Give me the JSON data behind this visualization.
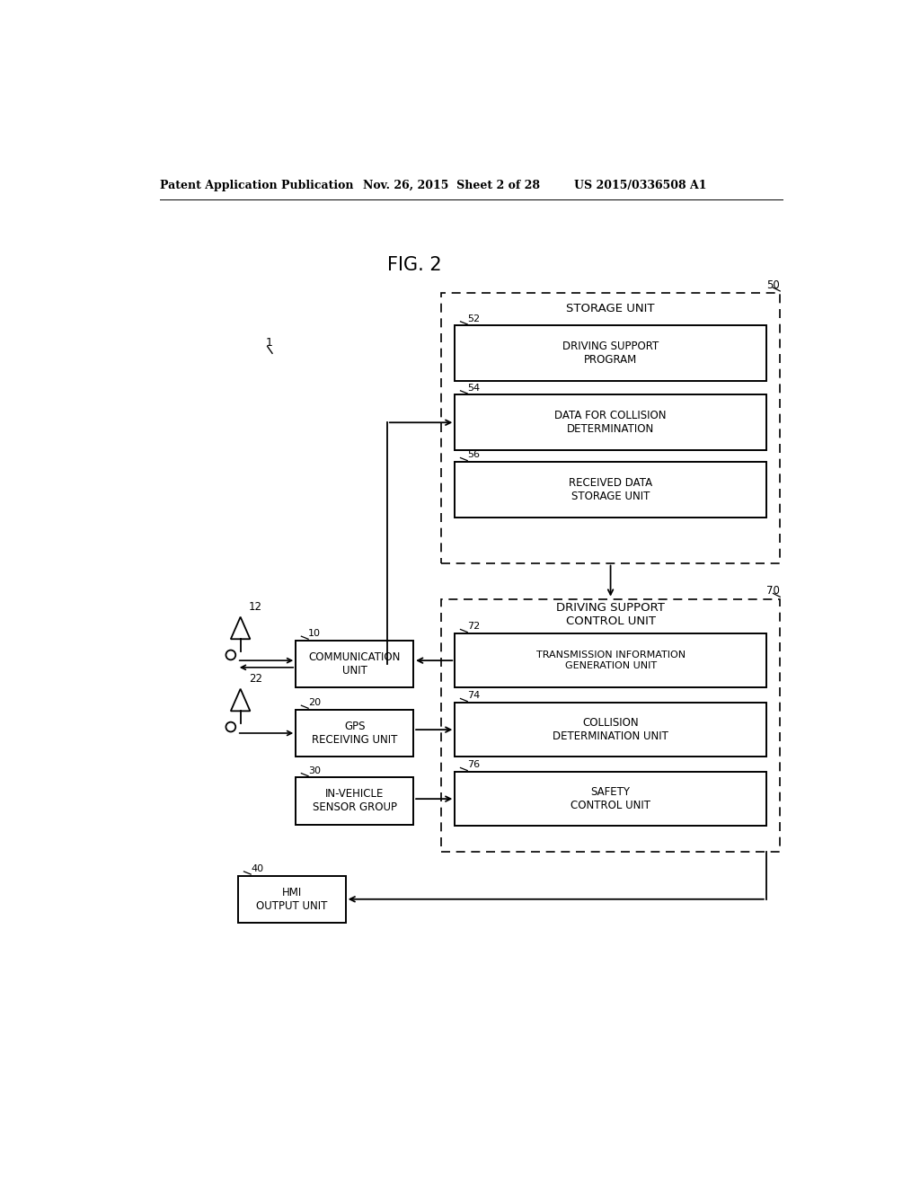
{
  "fig_title": "FIG. 2",
  "header_left": "Patent Application Publication",
  "header_mid": "Nov. 26, 2015  Sheet 2 of 28",
  "header_right": "US 2015/0336508 A1",
  "bg_color": "#ffffff",
  "label_1": "1",
  "label_50": "50",
  "label_52": "52",
  "label_54": "54",
  "label_56": "56",
  "label_70": "70",
  "label_72": "72",
  "label_74": "74",
  "label_76": "76",
  "label_10": "10",
  "label_20": "20",
  "label_30": "30",
  "label_40": "40",
  "label_12": "12",
  "label_22": "22",
  "box_storage_unit": "STORAGE UNIT",
  "box_driving_support_program": "DRIVING SUPPORT\nPROGRAM",
  "box_data_collision": "DATA FOR COLLISION\nDETERMINATION",
  "box_received_data": "RECEIVED DATA\nSTORAGE UNIT",
  "box_driving_support_control": "DRIVING SUPPORT\nCONTROL UNIT",
  "box_transmission_info": "TRANSMISSION INFORMATION\nGENERATION UNIT",
  "box_collision_det": "COLLISION\nDETERMINATION UNIT",
  "box_safety_control": "SAFETY\nCONTROL UNIT",
  "box_communication": "COMMUNICATION\nUNIT",
  "box_gps": "GPS\nRECEIVING UNIT",
  "box_invehicle": "IN-VEHICLE\nSENSOR GROUP",
  "box_hmi": "HMI\nOUTPUT UNIT"
}
